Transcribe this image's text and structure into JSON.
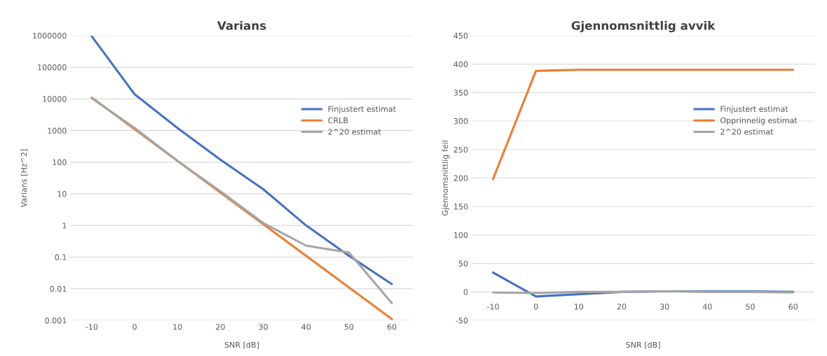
{
  "chart_data": [
    {
      "type": "line",
      "title": "Varians",
      "xlabel": "SNR [dB]",
      "ylabel": "Varians [Hz^2]",
      "categories": [
        "-10",
        "0",
        "10",
        "20",
        "30",
        "40",
        "50",
        "60"
      ],
      "log": true,
      "ylim": [
        0.001,
        1000000
      ],
      "yticks": [
        {
          "value": 0.001,
          "label": "0.001"
        },
        {
          "value": 0.01,
          "label": "0.01"
        },
        {
          "value": 0.1,
          "label": "0.1"
        },
        {
          "value": 1,
          "label": "1"
        },
        {
          "value": 10,
          "label": "10"
        },
        {
          "value": 100,
          "label": "100"
        },
        {
          "value": 1000,
          "label": "1000"
        },
        {
          "value": 10000,
          "label": "10000"
        },
        {
          "value": 100000,
          "label": "100000"
        },
        {
          "value": 1000000,
          "label": "1000000"
        }
      ],
      "grid": "y",
      "legend": "right",
      "marker": "none",
      "series": [
        {
          "name": "Finjustert estimat",
          "color": "#4472c4",
          "values": [
            950000,
            14000,
            1200,
            120,
            14,
            1.0,
            0.11,
            0.014
          ]
        },
        {
          "name": "CRLB",
          "color": "#ed7d31",
          "values": [
            11000,
            1100,
            110,
            11,
            1.1,
            0.11,
            0.011,
            0.0011
          ]
        },
        {
          "name": "2^20 estimat",
          "color": "#a5a5a5",
          "values": [
            10500,
            1200,
            110,
            12,
            1.2,
            0.23,
            0.14,
            0.0035
          ]
        }
      ]
    },
    {
      "type": "line",
      "title": "Gjennomsnittlig avvik",
      "xlabel": "SNR [dB]",
      "ylabel": "Gjennomsnittlig feil",
      "categories": [
        "-10",
        "0",
        "10",
        "20",
        "30",
        "40",
        "50",
        "60"
      ],
      "ylim": [
        -50,
        450
      ],
      "yticks": [
        -50,
        0,
        50,
        100,
        150,
        200,
        250,
        300,
        350,
        400,
        450
      ],
      "grid": "y",
      "legend": "right",
      "marker": "none",
      "series": [
        {
          "name": "Finjustert estimat",
          "color": "#4472c4",
          "values": [
            34,
            -8,
            -4,
            0,
            1,
            1,
            1,
            0
          ]
        },
        {
          "name": "Opprinnelig estimat",
          "color": "#ed7d31",
          "values": [
            198,
            388,
            390,
            390,
            390,
            390,
            390,
            390
          ]
        },
        {
          "name": "2^20 estimat",
          "color": "#a5a5a5",
          "values": [
            -1,
            -2,
            0,
            0,
            1,
            0,
            0,
            -1
          ]
        }
      ]
    }
  ]
}
